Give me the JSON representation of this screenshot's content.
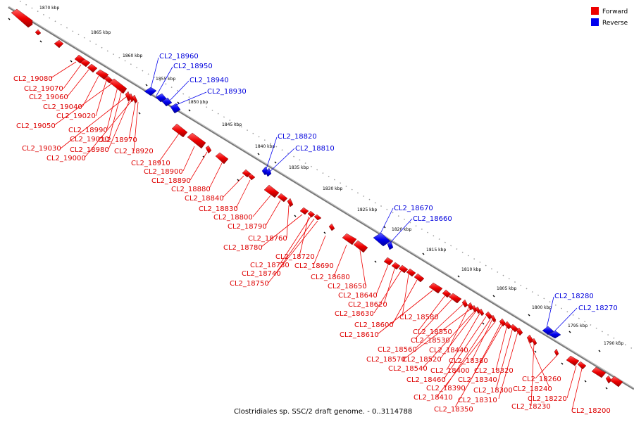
{
  "caption": "Clostridiales sp. SSC/2 draft genome. - 0..3114788",
  "legend": [
    {
      "label": "Forward",
      "color": "#ee0000"
    },
    {
      "label": "Reverse",
      "color": "#0000ee"
    }
  ],
  "kbp_marks": [
    "1870 kbp",
    "1865 kbp",
    "1860 kbp",
    "1855 kbp",
    "1850 kbp",
    "1845 kbp",
    "1840 kbp",
    "1835 kbp",
    "1830 kbp",
    "1825 kbp",
    "1820 kbp",
    "1815 kbp",
    "1810 kbp",
    "1805 kbp",
    "1800 kbp",
    "1795 kbp",
    "1790 kbp"
  ],
  "forward_labels": [
    "CL2_19080",
    "CL2_19070",
    "CL2_19060",
    "CL2_19040",
    "CL2_19020",
    "CL2_19050",
    "CL2_18990",
    "CL2_19010",
    "CL2_18970",
    "CL2_19030",
    "CL2_18980",
    "CL2_18920",
    "CL2_19000",
    "CL2_18910",
    "CL2_18900",
    "CL2_18890",
    "CL2_18880",
    "CL2_18840",
    "CL2_18830",
    "CL2_18800",
    "CL2_18790",
    "CL2_18760",
    "CL2_18780",
    "CL2_18720",
    "CL2_18730",
    "CL2_18690",
    "CL2_18740",
    "CL2_18750",
    "CL2_18680",
    "CL2_18650",
    "CL2_18640",
    "CL2_18620",
    "CL2_18630",
    "CL2_18580",
    "CL2_18600",
    "CL2_18610",
    "CL2_18550",
    "CL2_18530",
    "CL2_18560",
    "CL2_18440",
    "CL2_18570",
    "CL2_18520",
    "CL2_18380",
    "CL2_18540",
    "CL2_18400",
    "CL2_18320",
    "CL2_18460",
    "CL2_18340",
    "CL2_18390",
    "CL2_18300",
    "CL2_18260",
    "CL2_18410",
    "CL2_18310",
    "CL2_18240",
    "CL2_18220",
    "CL2_18350",
    "CL2_18230",
    "CL2_18200"
  ],
  "reverse_labels": [
    "CL2_18960",
    "CL2_18950",
    "CL2_18940",
    "CL2_18930",
    "CL2_18820",
    "CL2_18810",
    "CL2_18670",
    "CL2_18660",
    "CL2_18280",
    "CL2_18270"
  ]
}
